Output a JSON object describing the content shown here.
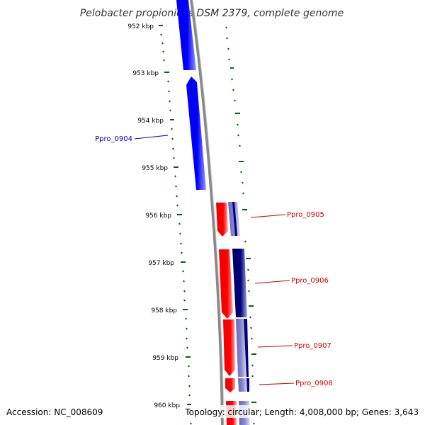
{
  "title": "Pelobacter propionicus DSM 2379, complete genome",
  "footer": {
    "accession": "Accession: NC_008609",
    "topology": "Topology: circular; Length: 4,008,000 bp; Genes: 3,643"
  },
  "scale": {
    "labels": [
      "952 kbp",
      "953 kbp",
      "954 kbp",
      "955 kbp",
      "956 kbp",
      "957 kbp",
      "958 kbp",
      "959 kbp",
      "960 kbp"
    ]
  },
  "genes": [
    {
      "label": "Ppro_0904",
      "strand": "forward",
      "color": "#0000cc"
    },
    {
      "label": "Ppro_0905",
      "strand": "reverse",
      "color": "#cc0000"
    },
    {
      "label": "Ppro_0906",
      "strand": "reverse",
      "color": "#cc0000"
    },
    {
      "label": "Ppro_0907",
      "strand": "reverse",
      "color": "#cc0000"
    },
    {
      "label": "Ppro_0908",
      "strand": "reverse",
      "color": "#cc0000"
    }
  ],
  "colors": {
    "forward": "#0000ff",
    "reverse": "#ff0000",
    "pathway": "#000080",
    "backbone": "#888888",
    "ticks": "#006400"
  }
}
